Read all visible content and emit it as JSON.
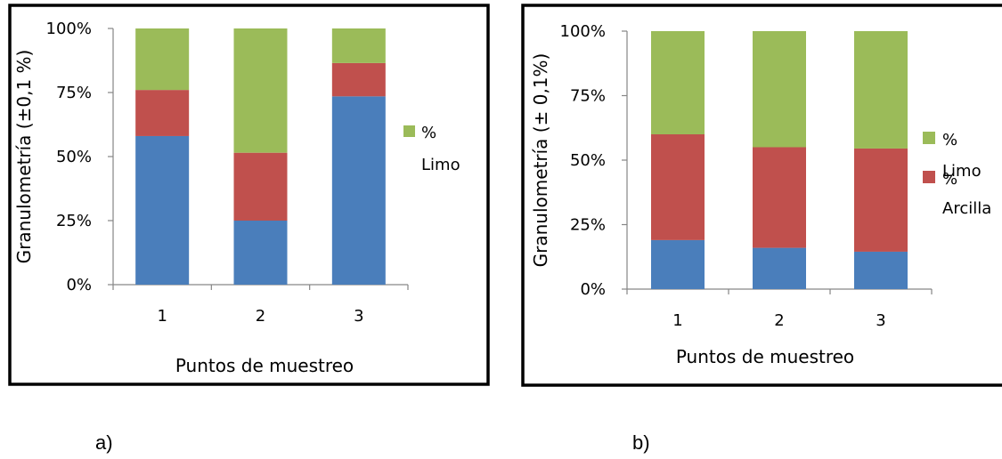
{
  "colors": {
    "arena": "#4a7ebb",
    "arcilla": "#c0504d",
    "limo": "#9bbb59",
    "frame": "#000000",
    "axis": "#868686"
  },
  "captions": {
    "a": "a)",
    "b": "b)"
  },
  "chart_data": [
    {
      "type": "bar",
      "stacked": true,
      "xlabel": "Puntos de muestreo",
      "ylabel": "Granulometría (±0,1 %)",
      "categories": [
        "1",
        "2",
        "3"
      ],
      "y_ticks": [
        "0%",
        "25%",
        "50%",
        "75%",
        "100%"
      ],
      "ylim": [
        0,
        100
      ],
      "series": [
        {
          "values": [
            58,
            25,
            73.5
          ],
          "color": "#4a7ebb"
        },
        {
          "values": [
            18,
            26.5,
            13
          ],
          "color": "#c0504d"
        },
        {
          "name": "% Limo",
          "values": [
            24,
            48.5,
            13.5
          ],
          "color": "#9bbb59"
        }
      ],
      "legend": {
        "placement": "right",
        "entries": [
          {
            "marker": "% ",
            "label": "Limo",
            "color": "#9bbb59"
          }
        ]
      }
    },
    {
      "type": "bar",
      "stacked": true,
      "xlabel": "Puntos de muestreo",
      "ylabel": "Granulometría (± 0,1%)",
      "categories": [
        "1",
        "2",
        "3"
      ],
      "y_ticks": [
        "0%",
        "25%",
        "50%",
        "75%",
        "100%"
      ],
      "ylim": [
        0,
        100
      ],
      "series": [
        {
          "values": [
            19,
            16,
            14.5
          ],
          "color": "#4a7ebb"
        },
        {
          "name": "% Arcilla",
          "values": [
            41,
            39,
            40
          ],
          "color": "#c0504d"
        },
        {
          "name": "% Limo",
          "values": [
            40,
            45,
            45.5
          ],
          "color": "#9bbb59"
        }
      ],
      "legend": {
        "placement": "right",
        "entries": [
          {
            "marker": "% ",
            "label": "Limo",
            "color": "#9bbb59"
          },
          {
            "marker": "% ",
            "label": "Arcilla",
            "color": "#c0504d"
          }
        ]
      }
    }
  ]
}
